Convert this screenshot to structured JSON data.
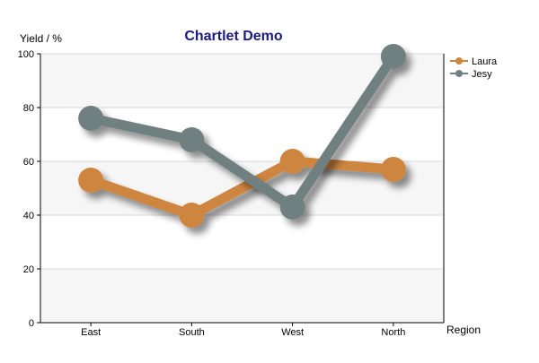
{
  "chart_data": {
    "type": "line",
    "title": "Chartlet Demo",
    "ylabel": "Yield / %",
    "xlabel": "Region",
    "categories": [
      "East",
      "South",
      "West",
      "North"
    ],
    "ylim": [
      0,
      100
    ],
    "yticks": [
      0,
      20,
      40,
      60,
      80,
      100
    ],
    "series": [
      {
        "name": "Laura",
        "values": [
          53,
          40,
          60,
          57
        ],
        "color": "#CD853F"
      },
      {
        "name": "Jesy",
        "values": [
          76,
          68,
          43,
          99
        ],
        "color": "#708080"
      }
    ],
    "legend_position": "top-right",
    "grid": true,
    "background_bands": true,
    "colors": {
      "title": "#1a1a80",
      "band": "#f6f6f6",
      "grid": "#d8d8d8",
      "axis": "#000000"
    }
  }
}
